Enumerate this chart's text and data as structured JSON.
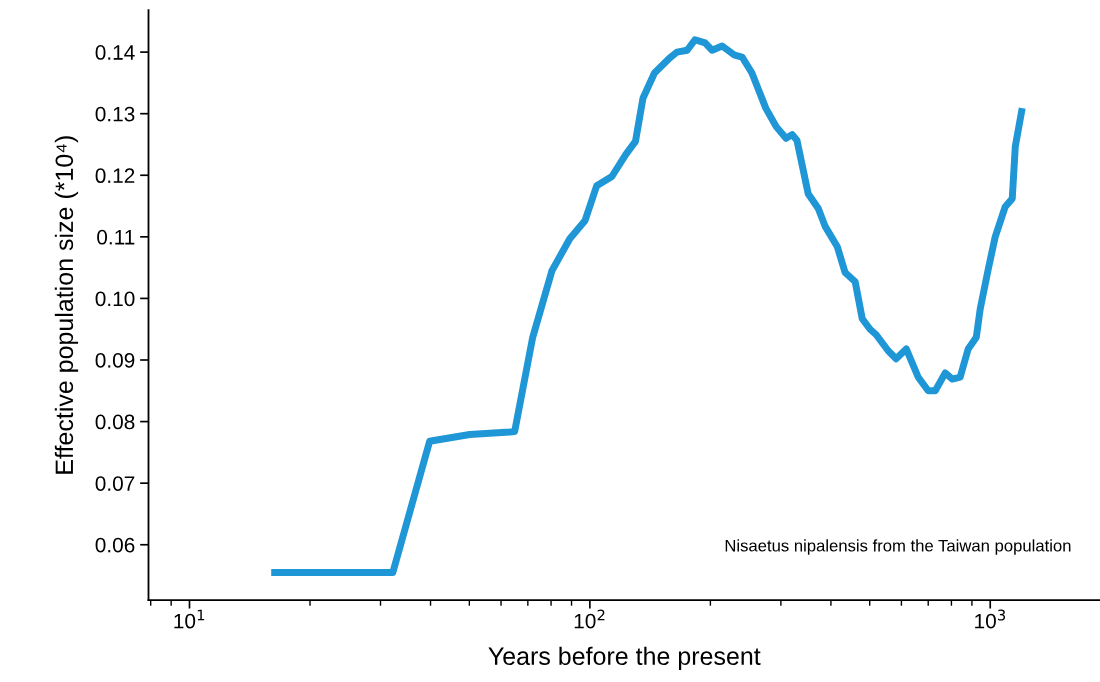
{
  "chart_data": {
    "type": "line",
    "xlabel": "Years before the present",
    "ylabel": "Effective population size (*10⁴)",
    "log": "x",
    "grid": false,
    "legend": false,
    "marker": "none",
    "line_style": "solid",
    "xlim": [
      7.9,
      1880
    ],
    "ylim": [
      0.051,
      0.1468
    ],
    "xticks": [
      {
        "value": 10,
        "label": "10$^{1}$"
      },
      {
        "value": 100,
        "label": "10$^{2}$"
      },
      {
        "value": 1000,
        "label": "10$^{3}$"
      }
    ],
    "yticks": [
      0.06,
      0.07,
      0.08,
      0.09,
      {
        "value": 0.1,
        "label": "0.10"
      },
      0.11,
      0.12,
      0.13,
      0.14
    ],
    "annotations": [
      "Nisaetus nipalensis from the Taiwan population"
    ],
    "series": [
      {
        "color": "#1f96d6",
        "x": [
          16.0,
          32.2,
          39.8,
          50.1,
          63.1,
          64.9,
          72.0,
          80.4,
          89.1,
          97.2,
          104,
          113.5,
          123,
          130,
          135.7,
          145,
          158,
          165,
          175,
          183,
          194,
          202,
          214,
          230,
          240,
          254,
          275,
          292,
          309,
          320,
          329,
          351,
          372,
          387,
          415,
          434,
          460,
          479,
          501,
          519,
          556,
          582,
          617,
          661,
          700,
          729,
          772,
          804,
          841,
          881,
          923,
          944,
          989,
          1029,
          1090,
          1135,
          1155,
          1202
        ],
        "values": [
          0.0555,
          0.0555,
          0.0768,
          0.0779,
          0.0783,
          0.0784,
          0.0937,
          0.1045,
          0.1097,
          0.1126,
          0.1183,
          0.1198,
          0.1234,
          0.1255,
          0.1325,
          0.1366,
          0.139,
          0.14,
          0.1403,
          0.142,
          0.1415,
          0.1403,
          0.141,
          0.1395,
          0.1392,
          0.1366,
          0.1309,
          0.1279,
          0.126,
          0.1266,
          0.1257,
          0.117,
          0.1146,
          0.1117,
          0.1084,
          0.1042,
          0.1027,
          0.0967,
          0.095,
          0.0941,
          0.0915,
          0.0902,
          0.0918,
          0.0872,
          0.085,
          0.085,
          0.0879,
          0.0869,
          0.0872,
          0.0918,
          0.0937,
          0.0983,
          0.1048,
          0.11,
          0.1149,
          0.1162,
          0.1247,
          0.1309
        ]
      }
    ]
  }
}
